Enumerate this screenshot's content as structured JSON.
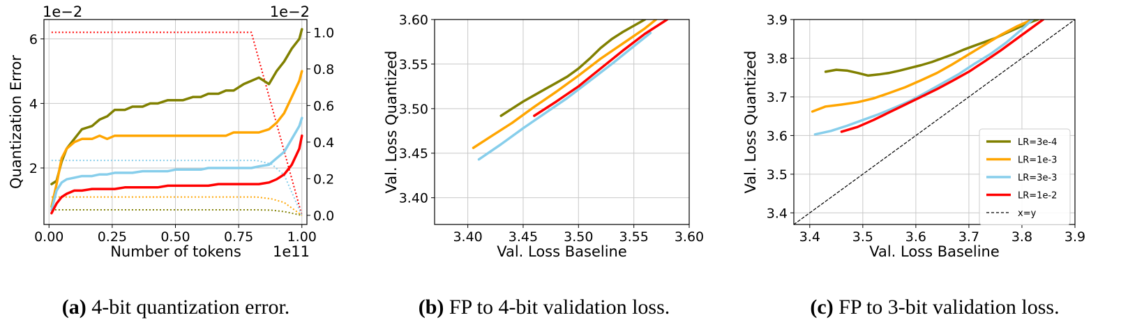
{
  "chart_data": [
    {
      "type": "line",
      "caption_tag": "(a)",
      "caption_text": "4-bit quantization error.",
      "xlabel": "Number of tokens",
      "ylabel": "Quantization Error",
      "x_multiplier": "1e11",
      "y_multiplier": "1e−2",
      "y2_multiplier": "1e−2",
      "xlim": [
        -0.02,
        1.02
      ],
      "ylim": [
        0.25,
        6.6
      ],
      "y2lim": [
        -0.05,
        1.07
      ],
      "x_ticks": [
        "0.00",
        "0.25",
        "0.50",
        "0.75",
        "1.00"
      ],
      "x_tick_values": [
        0,
        0.25,
        0.5,
        0.75,
        1.0
      ],
      "y_ticks": [
        "2",
        "4",
        "6"
      ],
      "y_tick_values": [
        2,
        4,
        6
      ],
      "y2_ticks": [
        "0.0",
        "0.2",
        "0.4",
        "0.6",
        "0.8",
        "1.0"
      ],
      "y2_tick_values": [
        0,
        0.2,
        0.4,
        0.6,
        0.8,
        1.0
      ],
      "grid": true,
      "series": [
        {
          "color": "#808000",
          "x": [
            0.01,
            0.03,
            0.05,
            0.07,
            0.1,
            0.13,
            0.17,
            0.2,
            0.23,
            0.26,
            0.3,
            0.33,
            0.37,
            0.4,
            0.43,
            0.47,
            0.5,
            0.53,
            0.57,
            0.6,
            0.63,
            0.67,
            0.7,
            0.73,
            0.77,
            0.8,
            0.83,
            0.87,
            0.9,
            0.93,
            0.96,
            0.99,
            1.0
          ],
          "y": [
            1.5,
            1.6,
            2.2,
            2.6,
            2.9,
            3.2,
            3.3,
            3.5,
            3.6,
            3.8,
            3.8,
            3.9,
            3.9,
            4.0,
            4.0,
            4.1,
            4.1,
            4.1,
            4.2,
            4.2,
            4.3,
            4.3,
            4.4,
            4.4,
            4.6,
            4.7,
            4.8,
            4.6,
            5.0,
            5.3,
            5.7,
            6.0,
            6.3
          ]
        },
        {
          "color": "#ffa500",
          "x": [
            0.01,
            0.03,
            0.05,
            0.07,
            0.1,
            0.13,
            0.17,
            0.2,
            0.23,
            0.26,
            0.3,
            0.33,
            0.37,
            0.4,
            0.43,
            0.47,
            0.5,
            0.53,
            0.57,
            0.6,
            0.63,
            0.67,
            0.7,
            0.73,
            0.77,
            0.8,
            0.83,
            0.87,
            0.9,
            0.93,
            0.96,
            0.99,
            1.0
          ],
          "y": [
            0.8,
            1.5,
            2.3,
            2.6,
            2.8,
            2.9,
            2.9,
            3.0,
            2.9,
            3.0,
            3.0,
            3.0,
            3.0,
            3.0,
            3.0,
            3.0,
            3.0,
            3.0,
            3.0,
            3.0,
            3.0,
            3.0,
            3.0,
            3.1,
            3.1,
            3.1,
            3.1,
            3.2,
            3.4,
            3.7,
            4.2,
            4.7,
            5.0
          ]
        },
        {
          "color": "#87ceeb",
          "x": [
            0.01,
            0.03,
            0.05,
            0.07,
            0.1,
            0.13,
            0.17,
            0.2,
            0.23,
            0.26,
            0.3,
            0.33,
            0.37,
            0.4,
            0.43,
            0.47,
            0.5,
            0.53,
            0.57,
            0.6,
            0.63,
            0.67,
            0.7,
            0.73,
            0.77,
            0.8,
            0.83,
            0.87,
            0.9,
            0.93,
            0.96,
            0.99,
            1.0
          ],
          "y": [
            0.7,
            1.3,
            1.55,
            1.65,
            1.7,
            1.75,
            1.75,
            1.8,
            1.8,
            1.85,
            1.85,
            1.85,
            1.9,
            1.9,
            1.9,
            1.9,
            1.95,
            1.95,
            1.95,
            1.95,
            2.0,
            2.0,
            2.0,
            2.0,
            2.0,
            2.0,
            2.05,
            2.1,
            2.3,
            2.5,
            2.9,
            3.3,
            3.55
          ]
        },
        {
          "color": "#ff0000",
          "x": [
            0.01,
            0.03,
            0.05,
            0.07,
            0.1,
            0.13,
            0.17,
            0.2,
            0.23,
            0.26,
            0.3,
            0.33,
            0.37,
            0.4,
            0.43,
            0.47,
            0.5,
            0.53,
            0.57,
            0.6,
            0.63,
            0.67,
            0.7,
            0.73,
            0.77,
            0.8,
            0.83,
            0.87,
            0.9,
            0.93,
            0.96,
            0.99,
            1.0
          ],
          "y": [
            0.6,
            0.9,
            1.1,
            1.2,
            1.3,
            1.3,
            1.35,
            1.35,
            1.35,
            1.35,
            1.4,
            1.4,
            1.4,
            1.4,
            1.4,
            1.45,
            1.45,
            1.45,
            1.45,
            1.45,
            1.45,
            1.5,
            1.5,
            1.5,
            1.5,
            1.5,
            1.5,
            1.55,
            1.65,
            1.8,
            2.1,
            2.6,
            3.0
          ]
        }
      ],
      "schedules": [
        {
          "color": "#ff0000",
          "x": [
            0.01,
            0.8,
            1.0
          ],
          "y": [
            1.0,
            1.0,
            0.0
          ]
        },
        {
          "color": "#87ceeb",
          "x": [
            0.01,
            0.82,
            0.88,
            0.93,
            1.0
          ],
          "y": [
            0.3,
            0.3,
            0.28,
            0.22,
            0.0
          ]
        },
        {
          "color": "#ffa500",
          "x": [
            0.01,
            0.82,
            0.88,
            0.93,
            1.0
          ],
          "y": [
            0.1,
            0.1,
            0.09,
            0.07,
            0.0
          ]
        },
        {
          "color": "#808000",
          "x": [
            0.01,
            0.82,
            0.88,
            0.93,
            1.0
          ],
          "y": [
            0.03,
            0.03,
            0.028,
            0.02,
            0.0
          ]
        }
      ]
    },
    {
      "type": "line",
      "caption_tag": "(b)",
      "caption_text": "FP to 4-bit validation loss.",
      "xlabel": "Val. Loss Baseline",
      "ylabel": "Val. Loss Quantized",
      "xlim": [
        3.37,
        3.6
      ],
      "ylim": [
        3.37,
        3.6
      ],
      "x_ticks": [
        "3.40",
        "3.45",
        "3.50",
        "3.55",
        "3.60"
      ],
      "x_tick_values": [
        3.4,
        3.45,
        3.5,
        3.55,
        3.6
      ],
      "y_ticks": [
        "3.40",
        "3.45",
        "3.50",
        "3.55",
        "3.60"
      ],
      "y_tick_values": [
        3.4,
        3.45,
        3.5,
        3.55,
        3.6
      ],
      "grid": true,
      "series": [
        {
          "color": "#808000",
          "x": [
            3.43,
            3.44,
            3.45,
            3.46,
            3.47,
            3.48,
            3.49,
            3.5,
            3.51,
            3.52,
            3.53,
            3.54,
            3.55,
            3.56
          ],
          "y": [
            3.492,
            3.5,
            3.508,
            3.515,
            3.522,
            3.529,
            3.536,
            3.545,
            3.556,
            3.568,
            3.578,
            3.586,
            3.593,
            3.6
          ]
        },
        {
          "color": "#ffa500",
          "x": [
            3.405,
            3.42,
            3.44,
            3.46,
            3.48,
            3.5,
            3.52,
            3.54,
            3.56,
            3.57
          ],
          "y": [
            3.456,
            3.468,
            3.484,
            3.502,
            3.519,
            3.537,
            3.556,
            3.573,
            3.59,
            3.6
          ]
        },
        {
          "color": "#87ceeb",
          "x": [
            3.41,
            3.43,
            3.45,
            3.47,
            3.49,
            3.51,
            3.53,
            3.55,
            3.565
          ],
          "y": [
            3.443,
            3.46,
            3.478,
            3.495,
            3.512,
            3.531,
            3.55,
            3.57,
            3.585
          ]
        },
        {
          "color": "#ff0000",
          "x": [
            3.46,
            3.48,
            3.5,
            3.52,
            3.54,
            3.56,
            3.58
          ],
          "y": [
            3.492,
            3.508,
            3.525,
            3.545,
            3.565,
            3.584,
            3.6
          ]
        }
      ]
    },
    {
      "type": "line",
      "caption_tag": "(c)",
      "caption_text": "FP to 3-bit validation loss.",
      "xlabel": "Val. Loss Baseline",
      "ylabel": "Val. Loss Quantized",
      "xlim": [
        3.37,
        3.9
      ],
      "ylim": [
        3.37,
        3.9
      ],
      "x_ticks": [
        "3.4",
        "3.5",
        "3.6",
        "3.7",
        "3.8",
        "3.9"
      ],
      "x_tick_values": [
        3.4,
        3.5,
        3.6,
        3.7,
        3.8,
        3.9
      ],
      "y_ticks": [
        "3.4",
        "3.5",
        "3.6",
        "3.7",
        "3.8",
        "3.9"
      ],
      "y_tick_values": [
        3.4,
        3.5,
        3.6,
        3.7,
        3.8,
        3.9
      ],
      "grid": true,
      "legend_position": "lower-right",
      "series": [
        {
          "name": "LR=3e-4",
          "color": "#808000",
          "x": [
            3.43,
            3.45,
            3.47,
            3.49,
            3.51,
            3.53,
            3.55,
            3.57,
            3.59,
            3.61,
            3.63,
            3.65,
            3.67,
            3.69,
            3.71,
            3.73,
            3.75,
            3.77,
            3.79,
            3.81,
            3.83
          ],
          "y": [
            3.765,
            3.77,
            3.768,
            3.762,
            3.755,
            3.758,
            3.762,
            3.768,
            3.775,
            3.782,
            3.79,
            3.8,
            3.81,
            3.822,
            3.832,
            3.842,
            3.852,
            3.865,
            3.877,
            3.89,
            3.9
          ]
        },
        {
          "name": "LR=1e-3",
          "color": "#ffa500",
          "x": [
            3.405,
            3.43,
            3.46,
            3.49,
            3.52,
            3.55,
            3.58,
            3.61,
            3.64,
            3.67,
            3.7,
            3.73,
            3.76,
            3.79,
            3.82
          ],
          "y": [
            3.662,
            3.675,
            3.68,
            3.686,
            3.696,
            3.71,
            3.725,
            3.743,
            3.762,
            3.785,
            3.81,
            3.835,
            3.86,
            3.882,
            3.9
          ]
        },
        {
          "name": "LR=3e-3",
          "color": "#87ceeb",
          "x": [
            3.41,
            3.44,
            3.47,
            3.5,
            3.53,
            3.56,
            3.59,
            3.62,
            3.65,
            3.68,
            3.71,
            3.74,
            3.77,
            3.8,
            3.82
          ],
          "y": [
            3.603,
            3.612,
            3.625,
            3.64,
            3.655,
            3.672,
            3.69,
            3.712,
            3.735,
            3.758,
            3.785,
            3.81,
            3.84,
            3.875,
            3.9
          ]
        },
        {
          "name": "LR=1e-2",
          "color": "#ff0000",
          "x": [
            3.46,
            3.49,
            3.52,
            3.55,
            3.58,
            3.61,
            3.64,
            3.67,
            3.7,
            3.73,
            3.76,
            3.79,
            3.82,
            3.84
          ],
          "y": [
            3.61,
            3.622,
            3.64,
            3.66,
            3.68,
            3.7,
            3.72,
            3.742,
            3.765,
            3.792,
            3.82,
            3.85,
            3.88,
            3.9
          ]
        },
        {
          "name": "x=y",
          "color": "#000000",
          "dashed": true,
          "x": [
            3.37,
            3.9
          ],
          "y": [
            3.37,
            3.9
          ]
        }
      ]
    }
  ]
}
